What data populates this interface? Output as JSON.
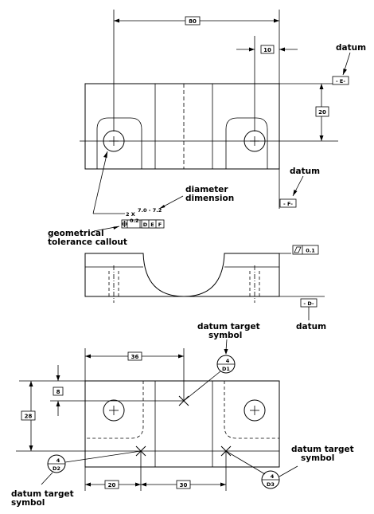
{
  "dimensions": {
    "top_overall": "80",
    "top_right_offset": "10",
    "top_height": "20",
    "bottom_top": "36",
    "bottom_left": "8",
    "bottom_height": "28",
    "bottom_x1": "20",
    "bottom_x2": "30"
  },
  "datums": {
    "top_datum_label": "datum",
    "top_datum_value": "- E-",
    "mid_datum_label": "datum",
    "mid_datum_value": "- F-",
    "front_datum_label": "datum",
    "front_datum_value": "- D-"
  },
  "callouts": {
    "diameter_line1": "diameter",
    "diameter_line2": "dimension",
    "geom_line1": "geometrical",
    "geom_line2": "tolerance callout",
    "hole_count": "2 X",
    "hole_range": "7.0 - 7.2",
    "fcf_tol": "0.2",
    "fcf_d": "D",
    "fcf_e": "E",
    "fcf_f": "F",
    "flatness_value": "0.1"
  },
  "targets": {
    "top_line1": "datum target",
    "top_line2": "symbol",
    "right_line1": "datum target",
    "right_line2": "symbol",
    "left_line1": "datum target",
    "left_line2": "symbol",
    "t1_size": "4",
    "t1_id": "D1",
    "t2_size": "4",
    "t2_id": "D2",
    "t3_size": "4",
    "t3_id": "D3"
  }
}
